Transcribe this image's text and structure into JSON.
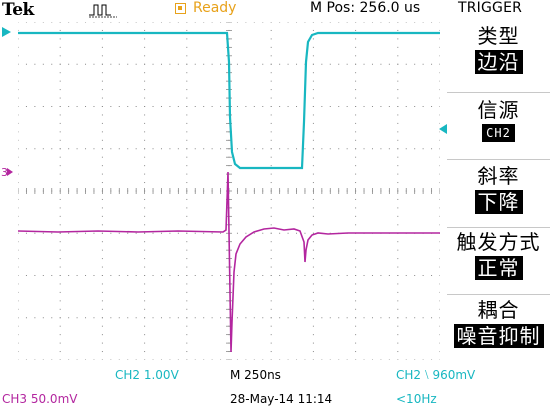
{
  "header": {
    "brand": "Tek",
    "acq_icon": "pulse-run-icon",
    "status_icon": "trigger-ready-icon",
    "status": "Ready",
    "mpos": "M Pos: 256.0 us",
    "menu_title": "TRIGGER"
  },
  "menu": [
    {
      "label": "类型",
      "value": "边沿"
    },
    {
      "label": "信源",
      "value": "CH2"
    },
    {
      "label": "斜率",
      "value": "下降"
    },
    {
      "label": "触发方式",
      "value": "正常"
    },
    {
      "label": "耦合",
      "value": "噪音抑制"
    }
  ],
  "markers": {
    "ch2_ground": "2",
    "ch3_ground": "3",
    "trigger_level_icon": "trigger-level-arrow-icon",
    "trigger_position_icon": "trigger-position-arrow-icon"
  },
  "footer": {
    "ch2_scale": "CH2  1.00V",
    "timebase": "M 250ns",
    "trigger_info": "CH2 ⧵ 960mV",
    "ch3_scale": "CH3  50.0mV",
    "datetime": "28-May-14 11:14",
    "freq": "<10Hz"
  },
  "colors": {
    "ch2": "#18b7c1",
    "ch3": "#b3269f",
    "ready": "#e8a21b",
    "grid": "#8a8a8a"
  }
}
